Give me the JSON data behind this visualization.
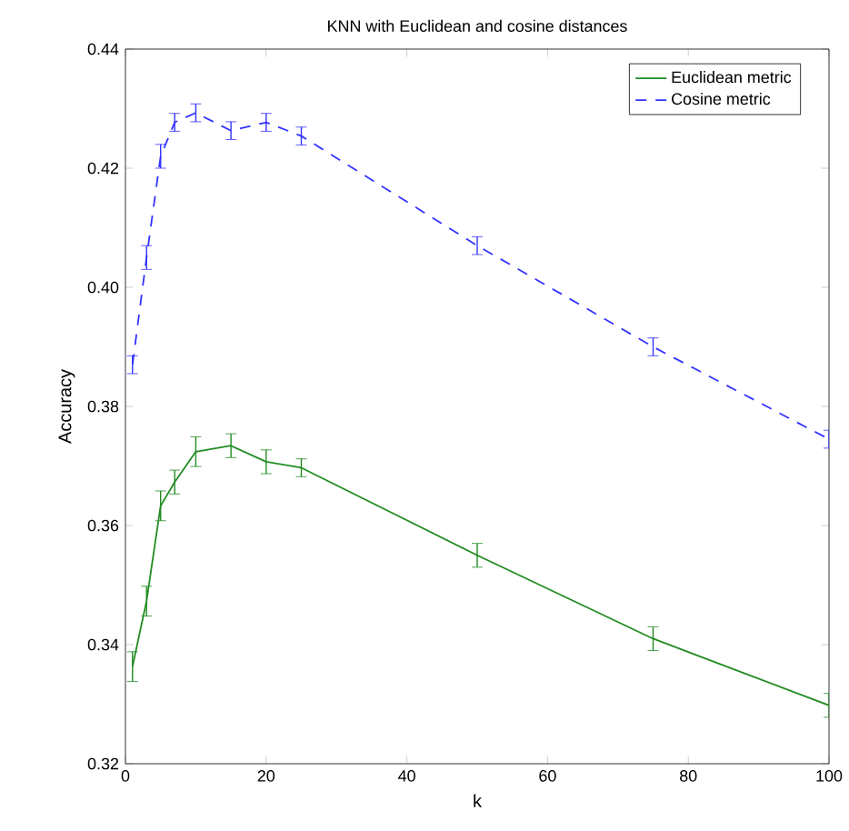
{
  "chart_data": {
    "type": "line",
    "title": "KNN with Euclidean and cosine distances",
    "xlabel": "k",
    "ylabel": "Accuracy",
    "x": [
      1,
      3,
      5,
      7,
      10,
      15,
      20,
      25,
      50,
      75,
      100
    ],
    "series": [
      {
        "name": "Euclidean metric",
        "color": "#228b22",
        "line_style": "solid",
        "values": [
          0.3363,
          0.3473,
          0.3633,
          0.3673,
          0.3724,
          0.3734,
          0.3707,
          0.3697,
          0.355,
          0.341,
          0.3298
        ],
        "errors": [
          0.0025,
          0.0025,
          0.0025,
          0.002,
          0.0025,
          0.002,
          0.002,
          0.0015,
          0.002,
          0.002,
          0.002
        ]
      },
      {
        "name": "Cosine metric",
        "color": "#3333ff",
        "line_style": "dashed",
        "values": [
          0.387,
          0.405,
          0.422,
          0.4277,
          0.4293,
          0.4263,
          0.4277,
          0.4254,
          0.407,
          0.39,
          0.3745
        ],
        "errors": [
          0.0015,
          0.002,
          0.002,
          0.0015,
          0.0015,
          0.0015,
          0.0015,
          0.0015,
          0.0015,
          0.0015,
          0.0015
        ]
      }
    ],
    "xlim": [
      0,
      100
    ],
    "xticks": [
      0,
      20,
      40,
      60,
      80,
      100
    ],
    "ylim": [
      0.32,
      0.44
    ],
    "yticks": [
      {
        "value": 0.32,
        "label": "0.32"
      },
      {
        "value": 0.34,
        "label": "0.34"
      },
      {
        "value": 0.36,
        "label": "0.36"
      },
      {
        "value": 0.38,
        "label": "0.38"
      },
      {
        "value": 0.4,
        "label": "0.40"
      },
      {
        "value": 0.42,
        "label": "0.42"
      },
      {
        "value": 0.44,
        "label": "0.44"
      }
    ],
    "grid": false,
    "legend": "top right",
    "marker": "none"
  }
}
